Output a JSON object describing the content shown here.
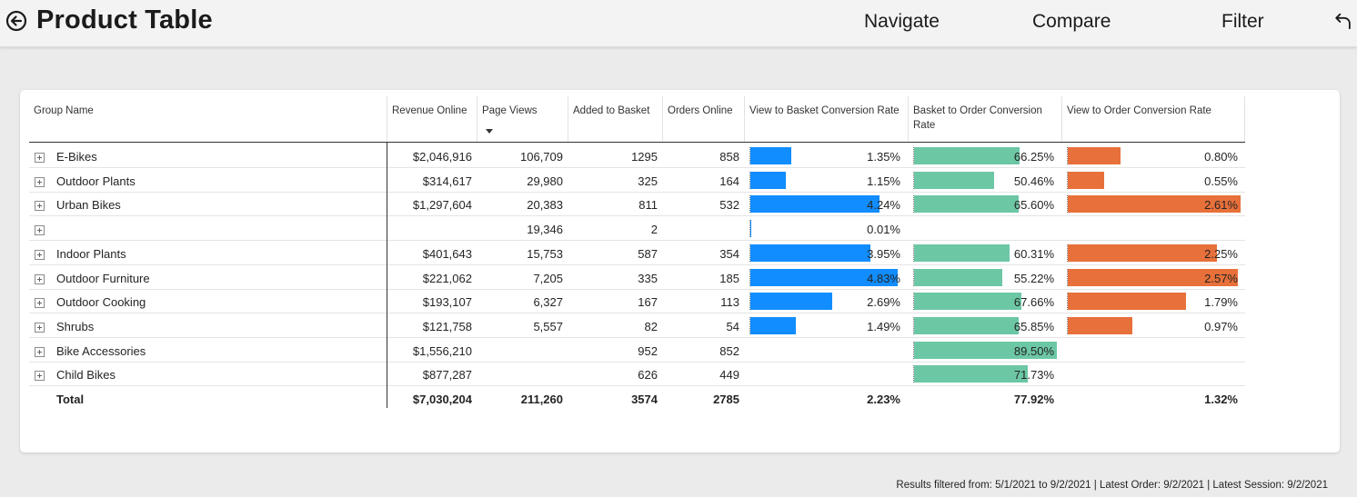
{
  "header": {
    "title": "Product Table",
    "back_icon": "back-arrow-circle-icon",
    "nav": [
      "Navigate",
      "Compare",
      "Filter"
    ],
    "undo_icon": "undo-icon"
  },
  "table": {
    "columns": [
      "Group Name",
      "Revenue Online",
      "Page Views",
      "Added to Basket",
      "Orders Online",
      "View to Basket Conversion Rate",
      "Basket to Order Conversion Rate",
      "View to Order Conversion Rate"
    ],
    "sorted_column": "Page Views",
    "sort_direction": "descending",
    "bar_colors": {
      "view_to_basket": "#118dff",
      "basket_to_order": "#6cc7a5",
      "view_to_order": "#e8703a"
    },
    "rows": [
      {
        "group": "E-Bikes",
        "revenue": "$2,046,916",
        "page_views": "106,709",
        "added": "1295",
        "orders": "858",
        "vtb": "1.35%",
        "bto": "66.25%",
        "vto": "0.80%"
      },
      {
        "group": "Outdoor Plants",
        "revenue": "$314,617",
        "page_views": "29,980",
        "added": "325",
        "orders": "164",
        "vtb": "1.15%",
        "bto": "50.46%",
        "vto": "0.55%"
      },
      {
        "group": "Urban Bikes",
        "revenue": "$1,297,604",
        "page_views": "20,383",
        "added": "811",
        "orders": "532",
        "vtb": "4.24%",
        "bto": "65.60%",
        "vto": "2.61%"
      },
      {
        "group": "",
        "revenue": "",
        "page_views": "19,346",
        "added": "2",
        "orders": "",
        "vtb": "0.01%",
        "bto": "",
        "vto": ""
      },
      {
        "group": "Indoor Plants",
        "revenue": "$401,643",
        "page_views": "15,753",
        "added": "587",
        "orders": "354",
        "vtb": "3.95%",
        "bto": "60.31%",
        "vto": "2.25%"
      },
      {
        "group": "Outdoor Furniture",
        "revenue": "$221,062",
        "page_views": "7,205",
        "added": "335",
        "orders": "185",
        "vtb": "4.83%",
        "bto": "55.22%",
        "vto": "2.57%"
      },
      {
        "group": "Outdoor Cooking",
        "revenue": "$193,107",
        "page_views": "6,327",
        "added": "167",
        "orders": "113",
        "vtb": "2.69%",
        "bto": "67.66%",
        "vto": "1.79%"
      },
      {
        "group": "Shrubs",
        "revenue": "$121,758",
        "page_views": "5,557",
        "added": "82",
        "orders": "54",
        "vtb": "1.49%",
        "bto": "65.85%",
        "vto": "0.97%"
      },
      {
        "group": "Bike Accessories",
        "revenue": "$1,556,210",
        "page_views": "",
        "added": "952",
        "orders": "852",
        "vtb": "",
        "bto": "89.50%",
        "vto": ""
      },
      {
        "group": "Child Bikes",
        "revenue": "$877,287",
        "page_views": "",
        "added": "626",
        "orders": "449",
        "vtb": "",
        "bto": "71.73%",
        "vto": ""
      }
    ],
    "total": {
      "label": "Total",
      "revenue": "$7,030,204",
      "page_views": "211,260",
      "added": "3574",
      "orders": "2785",
      "vtb": "2.23%",
      "bto": "77.92%",
      "vto": "1.32%"
    }
  },
  "footer": "Results filtered from: 5/1/2021 to 9/2/2021  |  Latest Order: 9/2/2021  |  Latest Session: 9/2/2021"
}
